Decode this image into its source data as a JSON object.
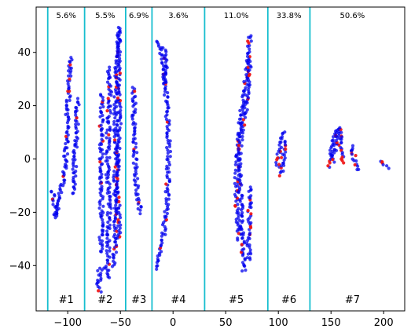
{
  "chart_data": {
    "type": "scatter",
    "xlim": [
      -130,
      220
    ],
    "ylim": [
      -57,
      57
    ],
    "xticks": [
      -100,
      -50,
      0,
      50,
      100,
      150,
      200
    ],
    "yticks": [
      -40,
      -20,
      0,
      20,
      40
    ],
    "boundaries": [
      -119,
      -84,
      -45,
      -20,
      30,
      90,
      130
    ],
    "boundary_color": "#17becf",
    "point_colors": {
      "primary": "#0000ee",
      "secondary": "#ee1111"
    },
    "clusters": [
      {
        "label": "#1",
        "percent": "5.6%"
      },
      {
        "label": "#2",
        "percent": "5.5%"
      },
      {
        "label": "#3",
        "percent": "6.9%"
      },
      {
        "label": "#4",
        "percent": "3.6%"
      },
      {
        "label": "#5",
        "percent": "11.0%"
      },
      {
        "label": "#6",
        "percent": "33.8%"
      },
      {
        "label": "#7",
        "percent": "50.6%"
      }
    ],
    "series": [
      {
        "red_ratio": 0.04,
        "path": [
          [
            -114,
            -12
          ],
          [
            -112,
            -20
          ],
          [
            -111,
            -22
          ],
          [
            -109,
            -15
          ],
          [
            -105,
            -10
          ],
          [
            -103,
            -5
          ],
          [
            -102,
            0
          ],
          [
            -101,
            8
          ],
          [
            -100,
            18
          ],
          [
            -99,
            25
          ],
          [
            -98,
            32
          ],
          [
            -97,
            37
          ],
          [
            -96,
            39
          ]
        ]
      },
      {
        "red_ratio": 0.06,
        "path": [
          [
            -95,
            -13
          ],
          [
            -94,
            -5
          ],
          [
            -93,
            2
          ],
          [
            -92,
            10
          ],
          [
            -91,
            17
          ],
          [
            -91,
            23
          ]
        ]
      },
      {
        "red_ratio": 0.07,
        "path": [
          [
            -70,
            -50
          ],
          [
            -72,
            -46
          ],
          [
            -68,
            -44
          ],
          [
            -70,
            -42
          ],
          [
            -66,
            -40
          ]
        ]
      },
      {
        "red_ratio": 0.07,
        "path": [
          [
            -69,
            -35
          ],
          [
            -68,
            -25
          ],
          [
            -68,
            -15
          ],
          [
            -68,
            -5
          ],
          [
            -68,
            5
          ],
          [
            -68,
            15
          ],
          [
            -68,
            25
          ]
        ]
      },
      {
        "red_ratio": 0.07,
        "path": [
          [
            -62,
            -45
          ],
          [
            -62,
            -35
          ],
          [
            -61,
            -25
          ],
          [
            -60,
            -15
          ],
          [
            -62,
            -5
          ],
          [
            -62,
            5
          ],
          [
            -61,
            15
          ],
          [
            -60,
            25
          ],
          [
            -62,
            35
          ]
        ]
      },
      {
        "red_ratio": 0.07,
        "path": [
          [
            -56,
            -40
          ],
          [
            -55,
            -30
          ],
          [
            -54,
            -20
          ],
          [
            -55,
            -10
          ],
          [
            -54,
            0
          ],
          [
            -55,
            10
          ],
          [
            -54,
            20
          ],
          [
            -54,
            30
          ],
          [
            -53,
            38
          ],
          [
            -52,
            45
          ],
          [
            -51,
            50
          ]
        ]
      },
      {
        "red_ratio": 0.1,
        "path": [
          [
            -51,
            -30
          ],
          [
            -52,
            -20
          ],
          [
            -53,
            -10
          ],
          [
            -52,
            0
          ],
          [
            -51,
            10
          ],
          [
            -51,
            20
          ],
          [
            -52,
            30
          ],
          [
            -52,
            40
          ],
          [
            -51,
            48
          ]
        ]
      },
      {
        "red_ratio": 0.07,
        "path": [
          [
            -38,
            27
          ],
          [
            -37,
            20
          ],
          [
            -37,
            10
          ],
          [
            -36,
            0
          ],
          [
            -35,
            -8
          ],
          [
            -33,
            -15
          ],
          [
            -31,
            -21
          ]
        ]
      },
      {
        "red_ratio": 0.07,
        "path": [
          [
            -17,
            -41
          ],
          [
            -15,
            -38
          ],
          [
            -12,
            -34
          ],
          [
            -9,
            -28
          ],
          [
            -6,
            -18
          ],
          [
            -5,
            -8
          ],
          [
            -4,
            2
          ],
          [
            -5,
            12
          ],
          [
            -6,
            20
          ],
          [
            -8,
            30
          ],
          [
            -10,
            38
          ],
          [
            -13,
            43
          ],
          [
            -15,
            45
          ]
        ]
      },
      {
        "red_ratio": 0.05,
        "path": [
          [
            -8,
            28
          ],
          [
            -7,
            36
          ],
          [
            -8,
            42
          ]
        ]
      },
      {
        "red_ratio": 0.1,
        "path": [
          [
            63,
            -30
          ],
          [
            61,
            -20
          ],
          [
            60,
            -10
          ],
          [
            61,
            0
          ],
          [
            63,
            10
          ],
          [
            65,
            18
          ],
          [
            68,
            25
          ],
          [
            70,
            32
          ],
          [
            72,
            40
          ],
          [
            73,
            47
          ]
        ]
      },
      {
        "red_ratio": 0.1,
        "path": [
          [
            67,
            -42
          ],
          [
            66,
            -32
          ],
          [
            65,
            -22
          ],
          [
            64,
            -12
          ],
          [
            63,
            -2
          ],
          [
            64,
            6
          ],
          [
            67,
            14
          ],
          [
            70,
            22
          ],
          [
            72,
            30
          ],
          [
            73,
            38
          ]
        ]
      },
      {
        "red_ratio": 0.07,
        "path": [
          [
            72,
            -38
          ],
          [
            72,
            -28
          ],
          [
            73,
            -18
          ],
          [
            74,
            -10
          ]
        ]
      },
      {
        "red_ratio": 0.3,
        "path": [
          [
            99,
            -3
          ],
          [
            100,
            2
          ],
          [
            102,
            6
          ],
          [
            104,
            10
          ],
          [
            106,
            11
          ]
        ]
      },
      {
        "red_ratio": 0.25,
        "path": [
          [
            103,
            -6
          ],
          [
            104,
            -3
          ],
          [
            105,
            2
          ],
          [
            106,
            7
          ]
        ]
      },
      {
        "red_ratio": 0.3,
        "path": [
          [
            148,
            -3
          ],
          [
            150,
            3
          ],
          [
            153,
            8
          ],
          [
            156,
            11
          ],
          [
            158,
            11
          ],
          [
            159,
            7
          ],
          [
            160,
            2
          ],
          [
            161,
            -2
          ]
        ]
      },
      {
        "red_ratio": 0.3,
        "path": [
          [
            152,
            -1
          ],
          [
            154,
            4
          ],
          [
            156,
            9
          ],
          [
            158,
            12
          ]
        ]
      },
      {
        "red_ratio": 0.25,
        "path": [
          [
            170,
            5
          ],
          [
            171,
            2
          ],
          [
            173,
            -1
          ],
          [
            175,
            -3
          ],
          [
            177,
            -5
          ]
        ]
      },
      {
        "red_ratio": 0.2,
        "path": [
          [
            197,
            -1
          ],
          [
            199,
            -2
          ],
          [
            202,
            -3
          ],
          [
            204,
            -4
          ]
        ]
      }
    ]
  }
}
